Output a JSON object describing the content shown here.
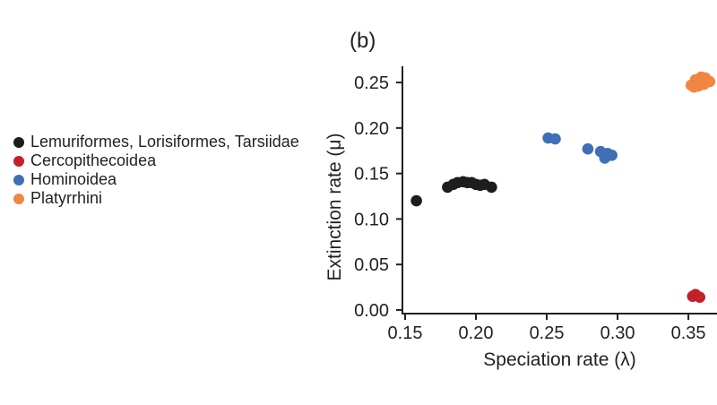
{
  "chart_data": {
    "type": "scatter",
    "panel_label": "(b)",
    "xlabel": "Speciation rate (λ)",
    "ylabel": "Extinction rate (μ)",
    "axis_color": "#231f20",
    "background_color": "#ffffff",
    "grid": false,
    "legend_position": "left-outside",
    "xlim": [
      0.148,
      0.37
    ],
    "ylim": [
      0.0,
      0.268
    ],
    "x_ticks": [
      {
        "label": "0.15",
        "value": 0.15
      },
      {
        "label": "0.20",
        "value": 0.2
      },
      {
        "label": "0.25",
        "value": 0.25
      },
      {
        "label": "0.30",
        "value": 0.3
      },
      {
        "label": "0.35",
        "value": 0.35
      }
    ],
    "y_ticks": [
      {
        "label": "0.00",
        "value": 0.0
      },
      {
        "label": "0.05",
        "value": 0.05
      },
      {
        "label": "0.10",
        "value": 0.1
      },
      {
        "label": "0.15",
        "value": 0.15
      },
      {
        "label": "0.20",
        "value": 0.2
      },
      {
        "label": "0.25",
        "value": 0.25
      }
    ],
    "series": [
      {
        "name": "Lemuriformes, Lorisiformes, Tarsiidae",
        "color": "#1f1c1c",
        "points": [
          [
            0.158,
            0.12
          ],
          [
            0.18,
            0.135
          ],
          [
            0.184,
            0.138
          ],
          [
            0.187,
            0.14
          ],
          [
            0.191,
            0.141
          ],
          [
            0.194,
            0.14
          ],
          [
            0.197,
            0.14
          ],
          [
            0.2,
            0.138
          ],
          [
            0.203,
            0.137
          ],
          [
            0.206,
            0.138
          ],
          [
            0.211,
            0.135
          ]
        ]
      },
      {
        "name": "Cercopithecoidea",
        "color": "#c2202a",
        "points": [
          [
            0.353,
            0.015
          ],
          [
            0.355,
            0.017
          ],
          [
            0.358,
            0.014
          ]
        ]
      },
      {
        "name": "Hominoidea",
        "color": "#3f6fb7",
        "points": [
          [
            0.251,
            0.189
          ],
          [
            0.256,
            0.188
          ],
          [
            0.279,
            0.177
          ],
          [
            0.288,
            0.174
          ],
          [
            0.293,
            0.172
          ],
          [
            0.296,
            0.17
          ],
          [
            0.291,
            0.167
          ]
        ]
      },
      {
        "name": "Platyrrhini",
        "color": "#ef8742",
        "points": [
          [
            0.352,
            0.247
          ],
          [
            0.355,
            0.253
          ],
          [
            0.359,
            0.256
          ],
          [
            0.362,
            0.255
          ],
          [
            0.365,
            0.251
          ],
          [
            0.361,
            0.248
          ],
          [
            0.357,
            0.246
          ],
          [
            0.354,
            0.245
          ]
        ]
      }
    ]
  }
}
